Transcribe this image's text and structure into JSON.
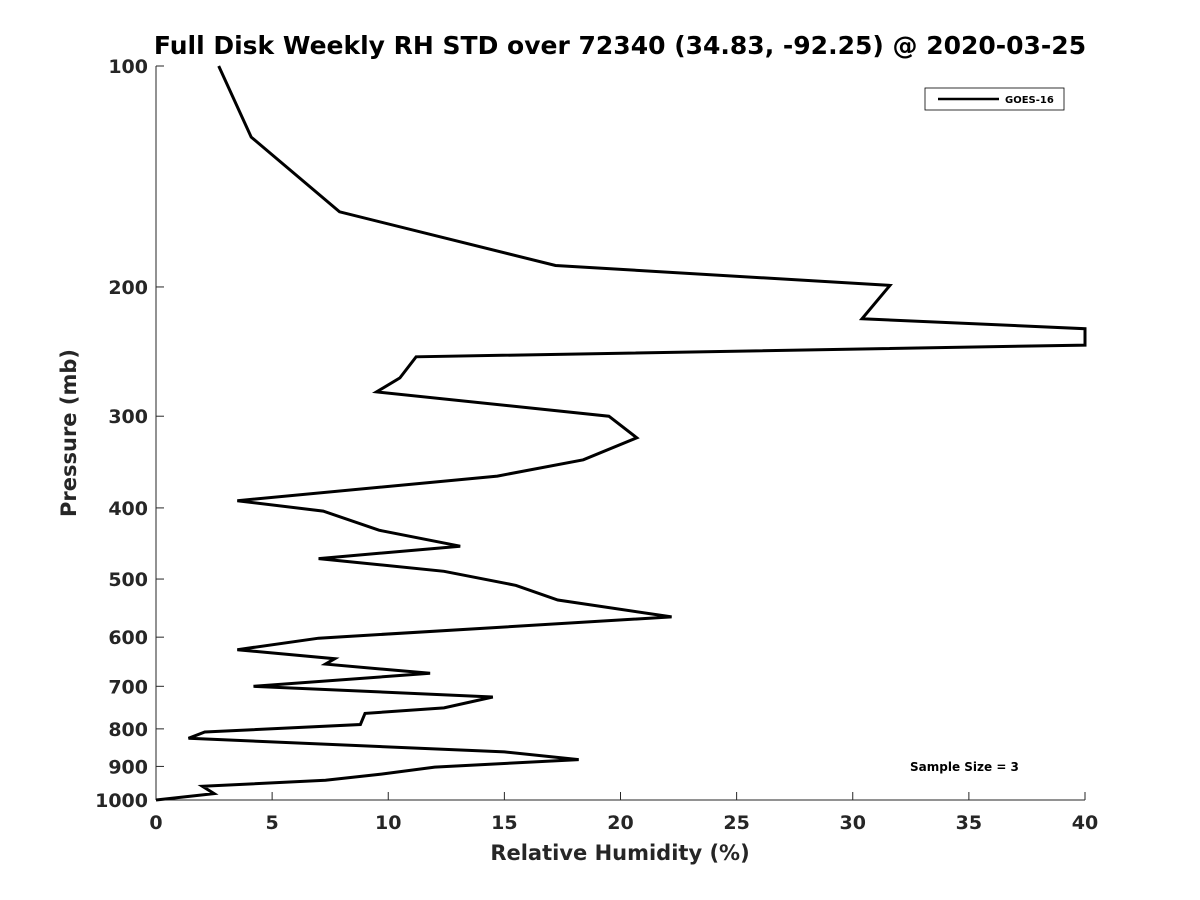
{
  "chart_data": {
    "type": "line",
    "title": "Full Disk Weekly RH STD over 72340 (34.83, -92.25) @ 2020-03-25",
    "xlabel": "Relative Humidity (%)",
    "ylabel": "Pressure (mb)",
    "xlim": [
      0,
      40
    ],
    "ylim": [
      100,
      1000
    ],
    "y_scale": "log",
    "y_reversed": true,
    "xticks": [
      0,
      5,
      10,
      15,
      20,
      25,
      30,
      35,
      40
    ],
    "yticks": [
      100,
      200,
      300,
      400,
      500,
      600,
      700,
      800,
      900,
      1000
    ],
    "grid": false,
    "legend_position": "top-right",
    "annotation": "Sample Size = 3",
    "series": [
      {
        "name": "GOES-16",
        "color": "#000000",
        "points": [
          [
            2.7,
            100
          ],
          [
            4.1,
            125
          ],
          [
            7.9,
            158
          ],
          [
            17.2,
            187
          ],
          [
            31.6,
            199
          ],
          [
            30.4,
            221
          ],
          [
            40.0,
            228
          ],
          [
            40.0,
            240
          ],
          [
            11.2,
            249
          ],
          [
            10.5,
            266
          ],
          [
            9.5,
            278
          ],
          [
            19.5,
            300
          ],
          [
            20.7,
            321
          ],
          [
            18.4,
            344
          ],
          [
            14.7,
            362
          ],
          [
            3.5,
            391
          ],
          [
            7.2,
            404
          ],
          [
            9.6,
            429
          ],
          [
            13.1,
            451
          ],
          [
            7.0,
            469
          ],
          [
            12.4,
            488
          ],
          [
            15.5,
            510
          ],
          [
            17.3,
            534
          ],
          [
            22.2,
            563
          ],
          [
            7.0,
            602
          ],
          [
            3.5,
            624
          ],
          [
            7.7,
            642
          ],
          [
            7.3,
            653
          ],
          [
            11.8,
            672
          ],
          [
            4.2,
            700
          ],
          [
            14.5,
            724
          ],
          [
            12.4,
            749
          ],
          [
            9.0,
            762
          ],
          [
            8.8,
            789
          ],
          [
            2.1,
            808
          ],
          [
            1.4,
            824
          ],
          [
            15.0,
            860
          ],
          [
            18.2,
            881
          ],
          [
            12.0,
            902
          ],
          [
            9.7,
            922
          ],
          [
            7.3,
            940
          ],
          [
            2.0,
            958
          ],
          [
            2.5,
            980
          ],
          [
            0.0,
            1000
          ]
        ]
      }
    ]
  }
}
